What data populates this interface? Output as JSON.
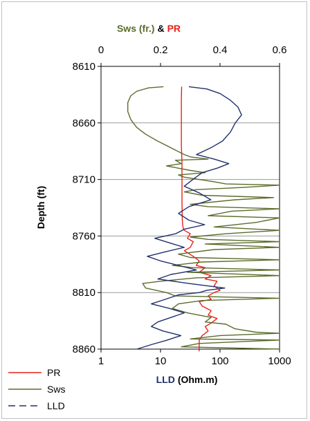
{
  "chart_data": {
    "type": "line",
    "title_top": {
      "sws_part": "Sws (fr.)",
      "amp": "&",
      "pr_part": "PR"
    },
    "ylabel": "Depth (ft)",
    "xlabel_bottom": {
      "lld_part": "LLD",
      "unit_part": "(Ohm.m)"
    },
    "y_axis": {
      "range": [
        8610,
        8860
      ],
      "ticks": [
        "8610",
        "8660",
        "8710",
        "8760",
        "8810",
        "8860"
      ],
      "inverted": true
    },
    "x_top": {
      "range": [
        0,
        0.6
      ],
      "ticks": [
        "0",
        "0.2",
        "0.4",
        "0.6"
      ],
      "applies_to": [
        "Sws",
        "PR"
      ]
    },
    "x_bottom": {
      "range": [
        1,
        1000
      ],
      "scale": "log",
      "ticks": [
        "1",
        "10",
        "100",
        "1000"
      ],
      "applies_to": [
        "LLD"
      ]
    },
    "grid": {
      "horizontal": true,
      "vertical": false
    },
    "legend": {
      "position": "bottom-left",
      "items": [
        {
          "label": "PR",
          "color": "#e8211a",
          "dash": "solid"
        },
        {
          "label": "Sws",
          "color": "#5a6b2a",
          "dash": "solid"
        },
        {
          "label": "LLD",
          "color": "#1f2f6b",
          "dash": "dashed"
        }
      ]
    },
    "series": [
      {
        "name": "PR",
        "color": "#e8211a",
        "axis": "top",
        "points": [
          [
            0.271,
            8628
          ],
          [
            0.27,
            8640
          ],
          [
            0.27,
            8660
          ],
          [
            0.27,
            8680
          ],
          [
            0.272,
            8695
          ],
          [
            0.272,
            8710
          ],
          [
            0.272,
            8730
          ],
          [
            0.273,
            8745
          ],
          [
            0.275,
            8752
          ],
          [
            0.28,
            8755
          ],
          [
            0.3,
            8758
          ],
          [
            0.29,
            8762
          ],
          [
            0.31,
            8765
          ],
          [
            0.3,
            8770
          ],
          [
            0.28,
            8773
          ],
          [
            0.31,
            8778
          ],
          [
            0.33,
            8782
          ],
          [
            0.32,
            8786
          ],
          [
            0.35,
            8788
          ],
          [
            0.33,
            8792
          ],
          [
            0.37,
            8795
          ],
          [
            0.35,
            8798
          ],
          [
            0.39,
            8800
          ],
          [
            0.38,
            8804
          ],
          [
            0.4,
            8808
          ],
          [
            0.38,
            8810
          ],
          [
            0.36,
            8813
          ],
          [
            0.37,
            8816
          ],
          [
            0.33,
            8818
          ],
          [
            0.34,
            8822
          ],
          [
            0.37,
            8826
          ],
          [
            0.36,
            8830
          ],
          [
            0.39,
            8833
          ],
          [
            0.37,
            8837
          ],
          [
            0.35,
            8840
          ],
          [
            0.36,
            8844
          ],
          [
            0.34,
            8848
          ],
          [
            0.33,
            8852
          ],
          [
            0.33,
            8856
          ],
          [
            0.33,
            8862
          ]
        ]
      },
      {
        "name": "Sws",
        "color": "#5a6b2a",
        "axis": "top",
        "points": [
          [
            0.21,
            8628
          ],
          [
            0.16,
            8629
          ],
          [
            0.12,
            8632
          ],
          [
            0.1,
            8636
          ],
          [
            0.09,
            8642
          ],
          [
            0.09,
            8650
          ],
          [
            0.1,
            8657
          ],
          [
            0.12,
            8664
          ],
          [
            0.15,
            8670
          ],
          [
            0.19,
            8676
          ],
          [
            0.22,
            8680
          ],
          [
            0.25,
            8684
          ],
          [
            0.28,
            8688
          ],
          [
            0.3,
            8690
          ],
          [
            0.36,
            8692
          ],
          [
            0.25,
            8693
          ],
          [
            0.27,
            8696
          ],
          [
            0.22,
            8698
          ],
          [
            0.3,
            8702
          ],
          [
            0.35,
            8704
          ],
          [
            0.26,
            8706
          ],
          [
            0.28,
            8708
          ],
          [
            0.38,
            8712
          ],
          [
            0.42,
            8714
          ],
          [
            0.6,
            8715
          ],
          [
            0.48,
            8717
          ],
          [
            0.32,
            8719
          ],
          [
            0.28,
            8721
          ],
          [
            0.34,
            8724
          ],
          [
            0.58,
            8726
          ],
          [
            0.45,
            8728
          ],
          [
            0.3,
            8732
          ],
          [
            0.36,
            8734
          ],
          [
            0.6,
            8736
          ],
          [
            0.44,
            8738
          ],
          [
            0.36,
            8742
          ],
          [
            0.6,
            8744
          ],
          [
            0.52,
            8748
          ],
          [
            0.38,
            8752
          ],
          [
            0.6,
            8755
          ],
          [
            0.42,
            8758
          ],
          [
            0.3,
            8761
          ],
          [
            0.36,
            8763
          ],
          [
            0.6,
            8765
          ],
          [
            0.35,
            8767
          ],
          [
            0.6,
            8770
          ],
          [
            0.38,
            8772
          ],
          [
            0.26,
            8776
          ],
          [
            0.3,
            8779
          ],
          [
            0.6,
            8781
          ],
          [
            0.34,
            8783
          ],
          [
            0.24,
            8786
          ],
          [
            0.31,
            8788
          ],
          [
            0.6,
            8790
          ],
          [
            0.29,
            8792
          ],
          [
            0.6,
            8795
          ],
          [
            0.32,
            8797
          ],
          [
            0.2,
            8800
          ],
          [
            0.14,
            8802
          ],
          [
            0.15,
            8806
          ],
          [
            0.22,
            8810
          ],
          [
            0.25,
            8813
          ],
          [
            0.6,
            8815
          ],
          [
            0.34,
            8817
          ],
          [
            0.26,
            8820
          ],
          [
            0.24,
            8824
          ],
          [
            0.29,
            8828
          ],
          [
            0.37,
            8832
          ],
          [
            0.35,
            8836
          ],
          [
            0.42,
            8838
          ],
          [
            0.45,
            8842
          ],
          [
            0.52,
            8845
          ],
          [
            0.6,
            8846
          ],
          [
            0.4,
            8848
          ],
          [
            0.3,
            8851
          ],
          [
            0.6,
            8852
          ],
          [
            0.33,
            8855
          ],
          [
            0.27,
            8858
          ],
          [
            0.6,
            8860
          ]
        ]
      },
      {
        "name": "LLD",
        "color": "#1f2f6b",
        "axis": "bottom",
        "points": [
          [
            30,
            8628
          ],
          [
            60,
            8630
          ],
          [
            100,
            8634
          ],
          [
            150,
            8640
          ],
          [
            200,
            8646
          ],
          [
            230,
            8653
          ],
          [
            180,
            8660
          ],
          [
            150,
            8668
          ],
          [
            110,
            8676
          ],
          [
            70,
            8682
          ],
          [
            40,
            8688
          ],
          [
            80,
            8692
          ],
          [
            140,
            8696
          ],
          [
            90,
            8700
          ],
          [
            50,
            8704
          ],
          [
            35,
            8710
          ],
          [
            25,
            8716
          ],
          [
            45,
            8722
          ],
          [
            70,
            8728
          ],
          [
            30,
            8734
          ],
          [
            20,
            8740
          ],
          [
            30,
            8746
          ],
          [
            55,
            8750
          ],
          [
            25,
            8754
          ],
          [
            18,
            8758
          ],
          [
            8,
            8762
          ],
          [
            14,
            8766
          ],
          [
            25,
            8770
          ],
          [
            12,
            8774
          ],
          [
            6,
            8778
          ],
          [
            10,
            8782
          ],
          [
            20,
            8786
          ],
          [
            40,
            8790
          ],
          [
            15,
            8794
          ],
          [
            9,
            8798
          ],
          [
            30,
            8802
          ],
          [
            120,
            8806
          ],
          [
            60,
            8808
          ],
          [
            45,
            8810
          ],
          [
            20,
            8812
          ],
          [
            12,
            8816
          ],
          [
            7,
            8820
          ],
          [
            14,
            8824
          ],
          [
            25,
            8828
          ],
          [
            15,
            8832
          ],
          [
            9,
            8836
          ],
          [
            7,
            8840
          ],
          [
            11,
            8844
          ],
          [
            22,
            8848
          ],
          [
            13,
            8852
          ],
          [
            7,
            8856
          ],
          [
            4,
            8860
          ]
        ]
      }
    ]
  }
}
